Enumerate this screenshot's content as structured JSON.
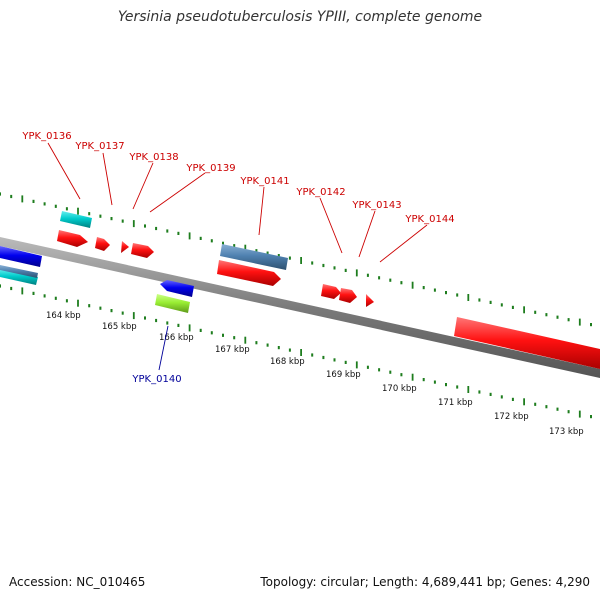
{
  "title": "Yersinia pseudotuberculosis YPIII, complete genome",
  "footer": {
    "accession": "Accession: NC_010465",
    "summary": "Topology: circular; Length: 4,689,441 bp; Genes: 4,290"
  },
  "colors": {
    "backbone": "#808080",
    "tick": "#1e7d1e",
    "forward_label": "#cc0000",
    "reverse_label": "#000099",
    "cds": "#ff0000",
    "cds_alt": "#0000ee",
    "rna_cyan": "#00cccc",
    "steel": "#4f81b0",
    "lime": "#99ee33"
  },
  "scale_labels": [
    "164 kbp",
    "165 kbp",
    "166 kbp",
    "167 kbp",
    "168 kbp",
    "169 kbp",
    "170 kbp",
    "171 kbp",
    "172 kbp",
    "173 kbp"
  ],
  "forward_gene_labels": [
    "YPK_0136",
    "YPK_0137",
    "YPK_0138",
    "YPK_0139",
    "YPK_0141",
    "YPK_0142",
    "YPK_0143",
    "YPK_0144"
  ],
  "reverse_gene_labels": [
    "YPK_0140"
  ]
}
